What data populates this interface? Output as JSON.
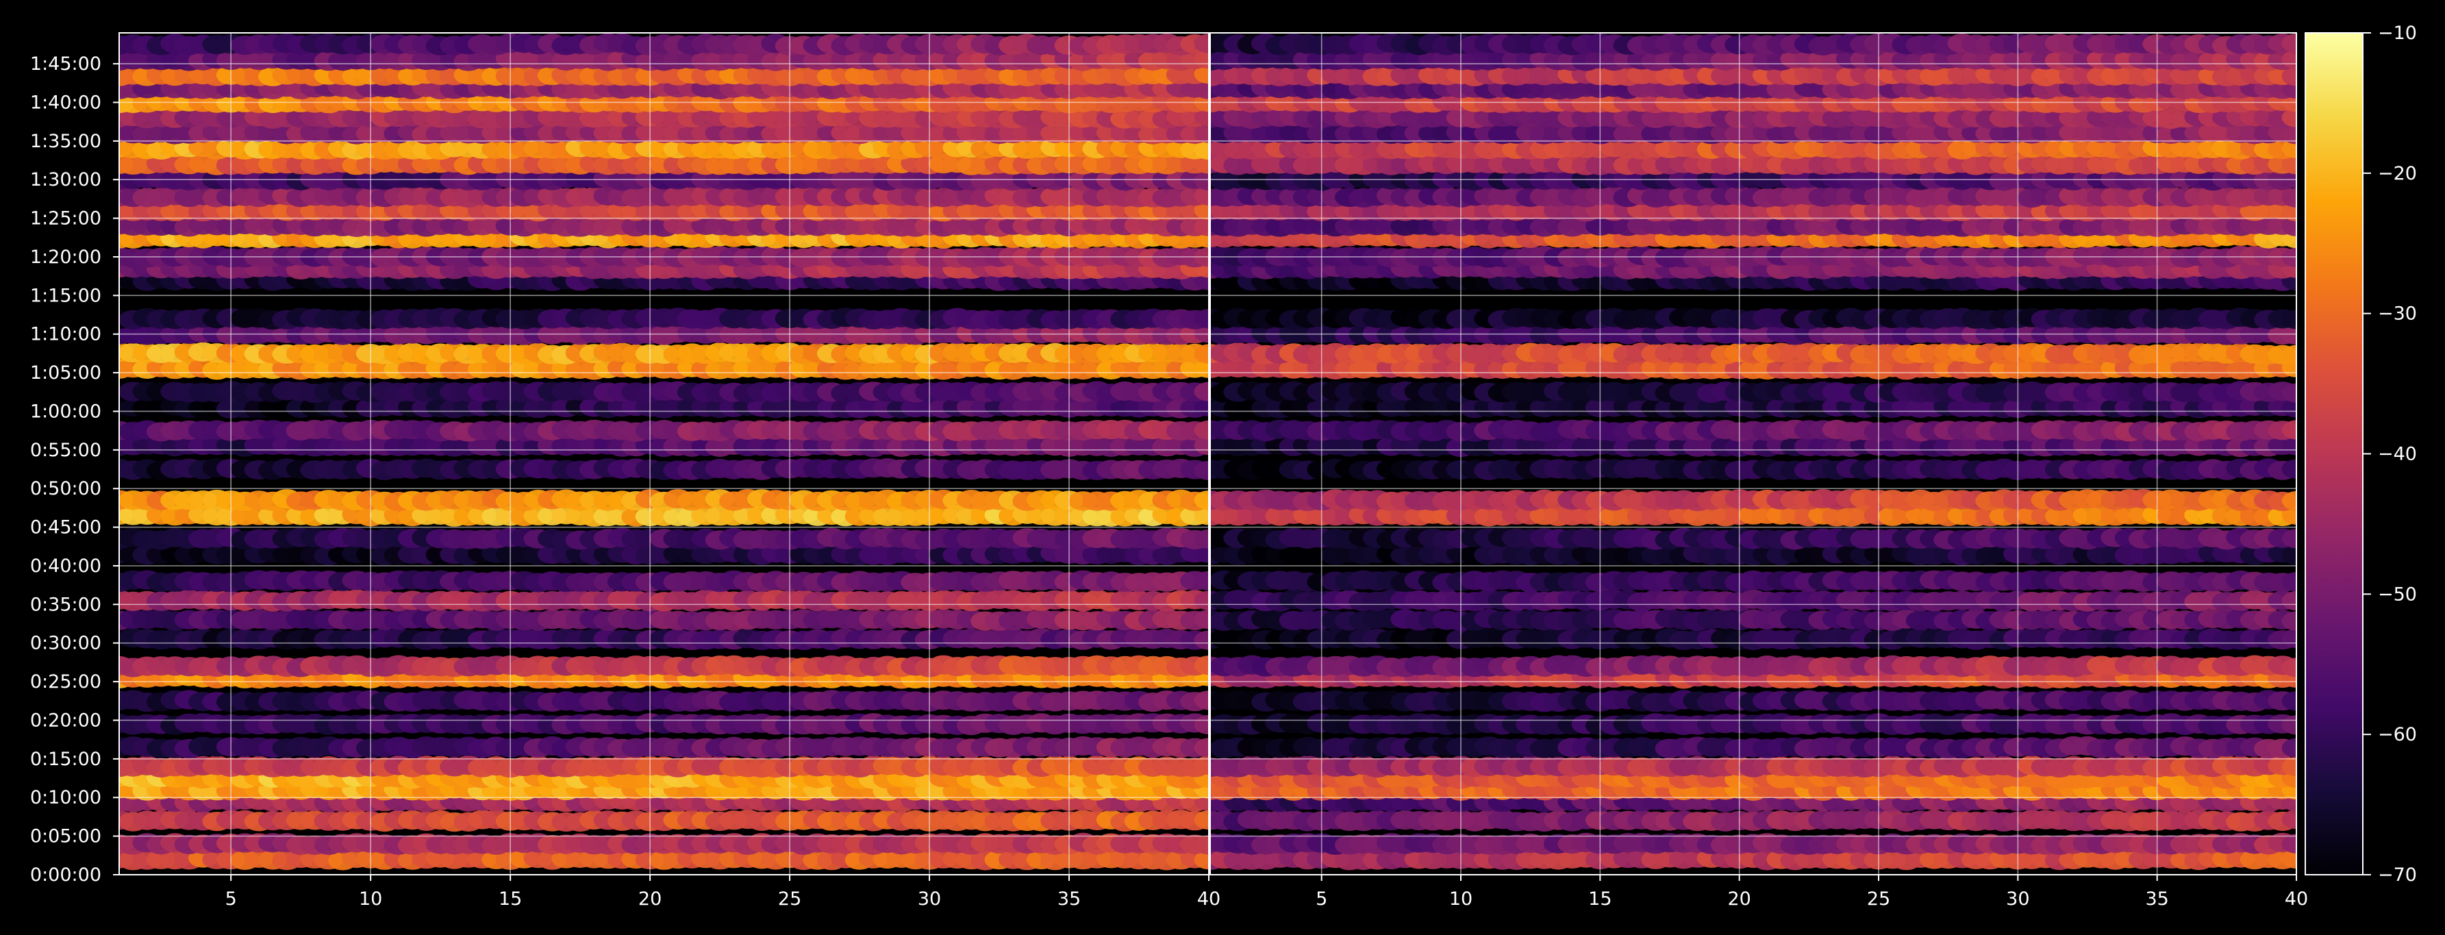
{
  "chart_data": {
    "type": "heatmap",
    "title": "",
    "xlabel": "",
    "ylabel": "",
    "grid": true,
    "colormap": "inferno",
    "panels": [
      {
        "name": "left",
        "xlim": [
          1,
          40
        ],
        "x_ticks": [
          "5",
          "10",
          "15",
          "20",
          "25",
          "30",
          "35",
          "40"
        ]
      },
      {
        "name": "right",
        "xlim": [
          1,
          40
        ],
        "x_ticks": [
          "5",
          "10",
          "15",
          "20",
          "25",
          "30",
          "35",
          "40"
        ]
      }
    ],
    "y_ticks": [
      "0:00:00",
      "0:05:00",
      "0:10:00",
      "0:15:00",
      "0:20:00",
      "0:25:00",
      "0:30:00",
      "0:35:00",
      "0:40:00",
      "0:45:00",
      "0:50:00",
      "0:55:00",
      "1:00:00",
      "1:05:00",
      "1:10:00",
      "1:15:00",
      "1:20:00",
      "1:25:00",
      "1:30:00",
      "1:35:00",
      "1:40:00",
      "1:45:00"
    ],
    "ylim_minutes": [
      0,
      109
    ],
    "colorbar": {
      "min": -70,
      "max": -10,
      "ticks": [
        "−10",
        "−20",
        "−30",
        "−40",
        "−50",
        "−60",
        "−70"
      ]
    },
    "bands": [
      {
        "t": 2.0,
        "left": [
          -33,
          -30
        ],
        "right": [
          -45,
          -33
        ]
      },
      {
        "t": 4.0,
        "left": [
          -45,
          -38
        ],
        "right": [
          -55,
          -43
        ]
      },
      {
        "t": 7.0,
        "left": [
          -38,
          -30
        ],
        "right": [
          -55,
          -38
        ]
      },
      {
        "t": 9.5,
        "left": [
          -45,
          -40
        ],
        "right": [
          -60,
          -42
        ]
      },
      {
        "t": 11.0,
        "left": [
          -22,
          -22
        ],
        "right": [
          -33,
          -25
        ]
      },
      {
        "t": 12.5,
        "left": [
          -20,
          -24
        ],
        "right": [
          -35,
          -26
        ]
      },
      {
        "t": 14.0,
        "left": [
          -40,
          -32
        ],
        "right": [
          -45,
          -36
        ]
      },
      {
        "t": 16.5,
        "left": [
          -62,
          -45
        ],
        "right": [
          -66,
          -50
        ]
      },
      {
        "t": 19.5,
        "left": [
          -62,
          -50
        ],
        "right": [
          -66,
          -54
        ]
      },
      {
        "t": 22.5,
        "left": [
          -63,
          -50
        ],
        "right": [
          -66,
          -54
        ]
      },
      {
        "t": 25.5,
        "left": [
          -25,
          -26
        ],
        "right": [
          -43,
          -30
        ]
      },
      {
        "t": 27.0,
        "left": [
          -45,
          -33
        ],
        "right": [
          -55,
          -36
        ]
      },
      {
        "t": 30.5,
        "left": [
          -66,
          -52
        ],
        "right": [
          -68,
          -58
        ]
      },
      {
        "t": 33.0,
        "left": [
          -58,
          -45
        ],
        "right": [
          -64,
          -50
        ]
      },
      {
        "t": 35.5,
        "left": [
          -45,
          -40
        ],
        "right": [
          -62,
          -48
        ]
      },
      {
        "t": 38.0,
        "left": [
          -62,
          -48
        ],
        "right": [
          -66,
          -52
        ]
      },
      {
        "t": 41.5,
        "left": [
          -68,
          -58
        ],
        "right": [
          -68,
          -62
        ]
      },
      {
        "t": 43.5,
        "left": [
          -64,
          -50
        ],
        "right": [
          -66,
          -53
        ]
      },
      {
        "t": 46.5,
        "left": [
          -22,
          -19
        ],
        "right": [
          -40,
          -24
        ]
      },
      {
        "t": 48.5,
        "left": [
          -25,
          -24
        ],
        "right": [
          -45,
          -30
        ]
      },
      {
        "t": 52.5,
        "left": [
          -66,
          -52
        ],
        "right": [
          -68,
          -56
        ]
      },
      {
        "t": 55.5,
        "left": [
          -62,
          -48
        ],
        "right": [
          -65,
          -52
        ]
      },
      {
        "t": 57.5,
        "left": [
          -55,
          -42
        ],
        "right": [
          -60,
          -45
        ]
      },
      {
        "t": 60.5,
        "left": [
          -68,
          -55
        ],
        "right": [
          -68,
          -58
        ]
      },
      {
        "t": 62.5,
        "left": [
          -66,
          -52
        ],
        "right": [
          -68,
          -56
        ]
      },
      {
        "t": 65.5,
        "left": [
          -24,
          -26
        ],
        "right": [
          -38,
          -28
        ]
      },
      {
        "t": 67.5,
        "left": [
          -22,
          -24
        ],
        "right": [
          -38,
          -27
        ]
      },
      {
        "t": 70.0,
        "left": [
          -55,
          -45
        ],
        "right": [
          -62,
          -50
        ]
      },
      {
        "t": 72.0,
        "left": [
          -66,
          -58
        ],
        "right": [
          -68,
          -62
        ]
      },
      {
        "t": 77.0,
        "left": [
          -66,
          -56
        ],
        "right": [
          -68,
          -58
        ]
      },
      {
        "t": 78.5,
        "left": [
          -50,
          -38
        ],
        "right": [
          -56,
          -42
        ]
      },
      {
        "t": 80.0,
        "left": [
          -55,
          -42
        ],
        "right": [
          -58,
          -45
        ]
      },
      {
        "t": 82.5,
        "left": [
          -22,
          -22
        ],
        "right": [
          -38,
          -23
        ]
      },
      {
        "t": 84.0,
        "left": [
          -50,
          -44
        ],
        "right": [
          -58,
          -46
        ]
      },
      {
        "t": 86.0,
        "left": [
          -35,
          -32
        ],
        "right": [
          -45,
          -35
        ]
      },
      {
        "t": 87.8,
        "left": [
          -48,
          -42
        ],
        "right": [
          -56,
          -45
        ]
      },
      {
        "t": 90.0,
        "left": [
          -60,
          -48
        ],
        "right": [
          -64,
          -52
        ]
      },
      {
        "t": 92.0,
        "left": [
          -33,
          -30
        ],
        "right": [
          -45,
          -34
        ]
      },
      {
        "t": 94.0,
        "left": [
          -22,
          -24
        ],
        "right": [
          -40,
          -26
        ]
      },
      {
        "t": 96.0,
        "left": [
          -50,
          -40
        ],
        "right": [
          -58,
          -45
        ]
      },
      {
        "t": 98.0,
        "left": [
          -45,
          -38
        ],
        "right": [
          -52,
          -42
        ]
      },
      {
        "t": 100.0,
        "left": [
          -24,
          -34
        ],
        "right": [
          -38,
          -36
        ]
      },
      {
        "t": 101.8,
        "left": [
          -50,
          -42
        ],
        "right": [
          -56,
          -45
        ]
      },
      {
        "t": 103.5,
        "left": [
          -26,
          -32
        ],
        "right": [
          -40,
          -36
        ]
      },
      {
        "t": 105.5,
        "left": [
          -55,
          -40
        ],
        "right": [
          -58,
          -42
        ]
      },
      {
        "t": 107.5,
        "left": [
          -62,
          -42
        ],
        "right": [
          -64,
          -46
        ]
      }
    ]
  }
}
